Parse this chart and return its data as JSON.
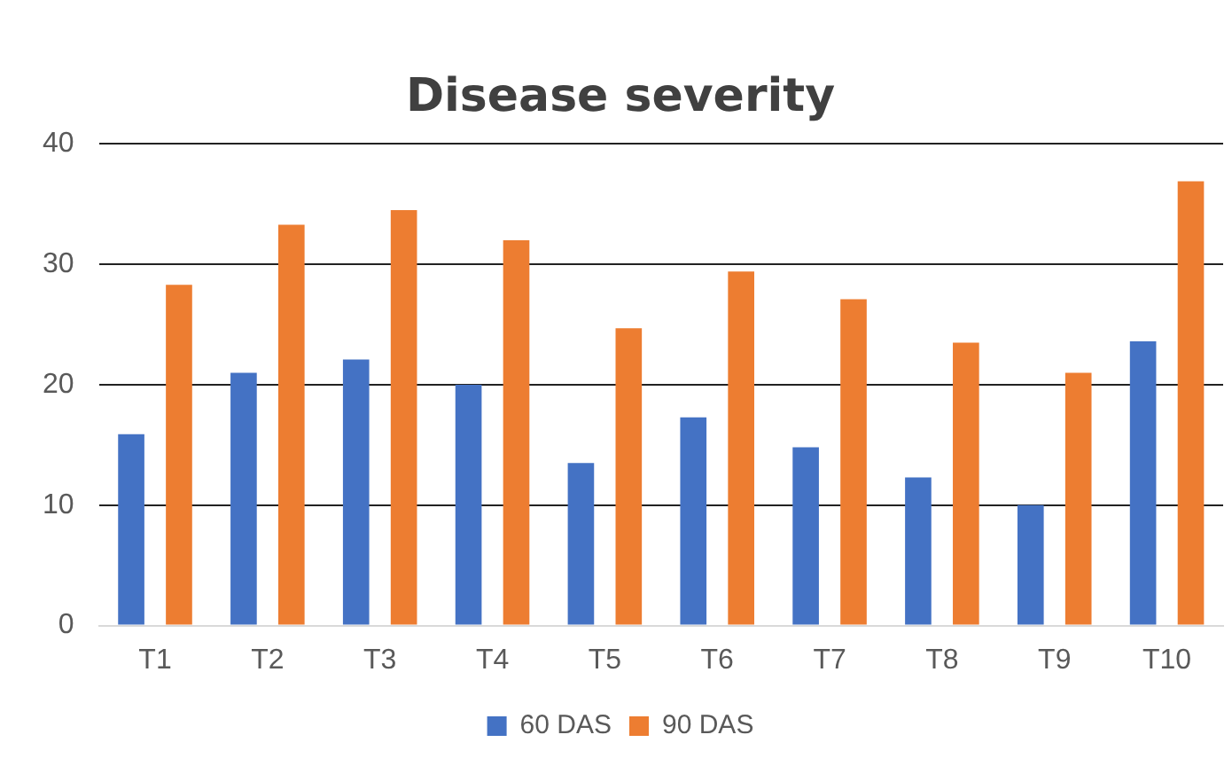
{
  "chart_data": {
    "type": "bar",
    "title": "Disease severity",
    "categories": [
      "T1",
      "T2",
      "T3",
      "T4",
      "T5",
      "T6",
      "T7",
      "T8",
      "T9",
      "T10"
    ],
    "series": [
      {
        "name": "60 DAS",
        "color": "#4472c4",
        "values": [
          15.9,
          21.0,
          22.1,
          20.0,
          13.5,
          17.3,
          14.8,
          12.3,
          10.0,
          23.6
        ]
      },
      {
        "name": "90 DAS",
        "color": "#ed7d31",
        "values": [
          28.3,
          33.3,
          34.5,
          32.0,
          24.7,
          29.4,
          27.1,
          23.5,
          21.0,
          36.9
        ]
      }
    ],
    "ylim": [
      0,
      40
    ],
    "yticks": [
      0,
      10,
      20,
      30,
      40
    ],
    "grid": "y",
    "legend": "bottom"
  }
}
